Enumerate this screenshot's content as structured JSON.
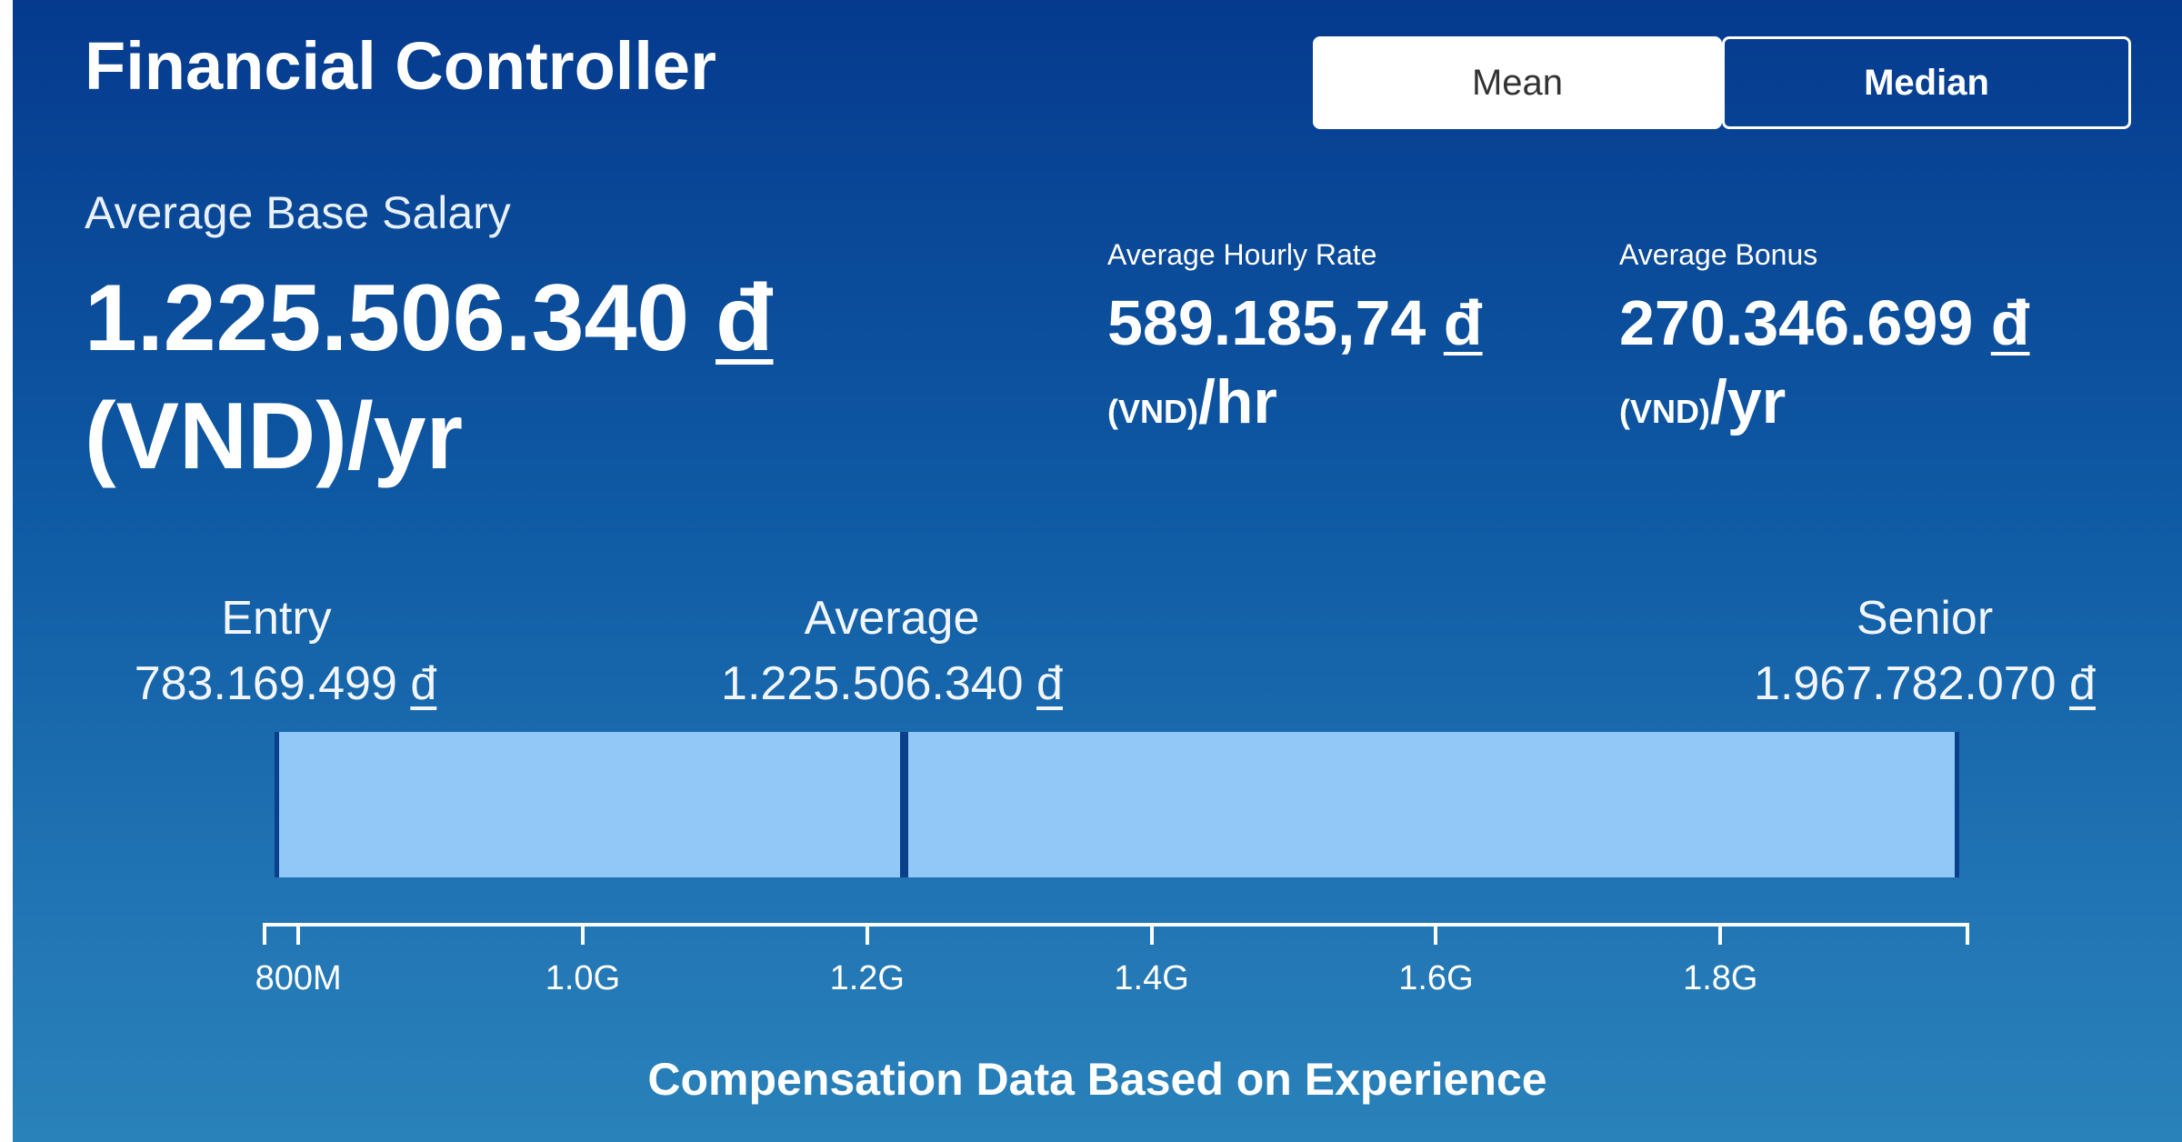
{
  "header": {
    "title": "Financial Controller"
  },
  "toggle": {
    "mean_label": "Mean",
    "median_label": "Median",
    "selected": "Mean"
  },
  "base_salary": {
    "label": "Average Base Salary",
    "value": "1.225.506.340",
    "currency_symbol": "đ",
    "unit": "(VND)/yr"
  },
  "hourly": {
    "label": "Average Hourly Rate",
    "value": "589.185,74",
    "currency_symbol": "đ",
    "unit_small": "(VND)",
    "unit_big": "/hr"
  },
  "bonus": {
    "label": "Average Bonus",
    "value": "270.346.699",
    "currency_symbol": "đ",
    "unit_small": "(VND)",
    "unit_big": "/yr"
  },
  "experience": {
    "entry": {
      "label": "Entry",
      "value": "783.169.499",
      "currency_symbol": "đ"
    },
    "average": {
      "label": "Average",
      "value": "1.225.506.340",
      "currency_symbol": "đ"
    },
    "senior": {
      "label": "Senior",
      "value": "1.967.782.070",
      "currency_symbol": "đ"
    },
    "footer": "Compensation Data Based on Experience"
  },
  "chart_data": {
    "type": "bar",
    "orientation": "horizontal-range",
    "range": {
      "start": 783169499,
      "average": 1225506340,
      "end": 1967782070
    },
    "axis": {
      "min": 775000000,
      "max": 1975000000,
      "tick_values": [
        800000000,
        1000000000,
        1200000000,
        1400000000,
        1600000000,
        1800000000
      ],
      "tick_labels": [
        "800M",
        "1.0G",
        "1.2G",
        "1.4G",
        "1.6G",
        "1.8G"
      ]
    },
    "bar_color": "#92c8f8",
    "title": "Compensation Data Based on Experience"
  }
}
